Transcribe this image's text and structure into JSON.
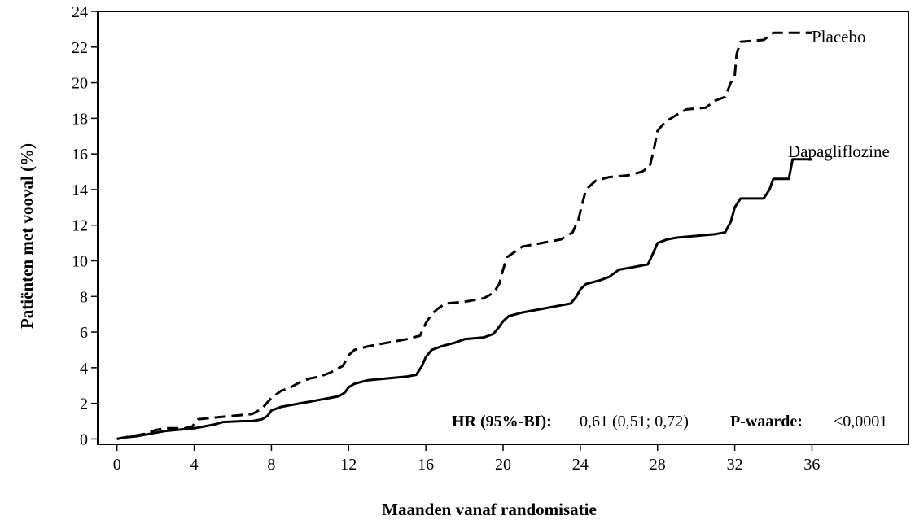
{
  "chart_data": {
    "type": "line",
    "xlabel": "Maanden vanaf randomisatie",
    "ylabel": "Patiënten met vooval (%)",
    "xlim": [
      -1,
      41
    ],
    "ylim": [
      -0.3,
      24
    ],
    "x_ticks": [
      0,
      4,
      8,
      12,
      16,
      20,
      24,
      28,
      32,
      36
    ],
    "y_ticks": [
      0,
      2,
      4,
      6,
      8,
      10,
      12,
      14,
      16,
      18,
      20,
      22,
      24
    ],
    "series": [
      {
        "name": "Placebo",
        "style": "dashed",
        "color": "#000000",
        "points": [
          [
            0,
            0
          ],
          [
            0.5,
            0.1
          ],
          [
            1,
            0.2
          ],
          [
            1.5,
            0.3
          ],
          [
            2,
            0.5
          ],
          [
            2.5,
            0.6
          ],
          [
            3,
            0.6
          ],
          [
            3.5,
            0.6
          ],
          [
            3.9,
            0.7
          ],
          [
            4.2,
            1.1
          ],
          [
            5,
            1.2
          ],
          [
            6,
            1.3
          ],
          [
            7,
            1.4
          ],
          [
            7.5,
            1.7
          ],
          [
            8,
            2.3
          ],
          [
            8.5,
            2.7
          ],
          [
            9,
            2.9
          ],
          [
            9.5,
            3.2
          ],
          [
            10,
            3.4
          ],
          [
            10.5,
            3.5
          ],
          [
            11,
            3.7
          ],
          [
            11.7,
            4.1
          ],
          [
            12,
            4.7
          ],
          [
            12.3,
            5.0
          ],
          [
            13,
            5.2
          ],
          [
            14,
            5.4
          ],
          [
            15,
            5.6
          ],
          [
            15.7,
            5.8
          ],
          [
            16,
            6.5
          ],
          [
            16.3,
            7.0
          ],
          [
            16.6,
            7.3
          ],
          [
            17,
            7.6
          ],
          [
            18,
            7.7
          ],
          [
            19,
            7.9
          ],
          [
            19.5,
            8.2
          ],
          [
            19.8,
            8.7
          ],
          [
            20,
            9.5
          ],
          [
            20.2,
            10.2
          ],
          [
            20.6,
            10.5
          ],
          [
            21,
            10.8
          ],
          [
            22,
            11.0
          ],
          [
            23,
            11.2
          ],
          [
            23.6,
            11.6
          ],
          [
            23.9,
            12.3
          ],
          [
            24.1,
            13.2
          ],
          [
            24.3,
            14.0
          ],
          [
            24.8,
            14.5
          ],
          [
            25.5,
            14.7
          ],
          [
            26.5,
            14.8
          ],
          [
            27.2,
            15.0
          ],
          [
            27.6,
            15.3
          ],
          [
            27.8,
            16.2
          ],
          [
            28,
            17.3
          ],
          [
            28.4,
            17.8
          ],
          [
            29,
            18.2
          ],
          [
            29.5,
            18.5
          ],
          [
            30.5,
            18.6
          ],
          [
            31,
            19.0
          ],
          [
            31.5,
            19.2
          ],
          [
            31.8,
            20.0
          ],
          [
            32.0,
            20.4
          ],
          [
            32.1,
            21.6
          ],
          [
            32.3,
            22.3
          ],
          [
            33.5,
            22.4
          ],
          [
            34,
            22.8
          ],
          [
            36,
            22.8
          ]
        ]
      },
      {
        "name": "Dapagliflozine",
        "style": "solid",
        "color": "#000000",
        "points": [
          [
            0,
            0
          ],
          [
            0.5,
            0.1
          ],
          [
            1,
            0.15
          ],
          [
            1.5,
            0.25
          ],
          [
            2,
            0.35
          ],
          [
            2.5,
            0.45
          ],
          [
            3,
            0.5
          ],
          [
            4,
            0.6
          ],
          [
            4.5,
            0.7
          ],
          [
            5,
            0.8
          ],
          [
            5.5,
            0.95
          ],
          [
            6.5,
            1.0
          ],
          [
            7,
            1.0
          ],
          [
            7.5,
            1.1
          ],
          [
            7.8,
            1.3
          ],
          [
            8,
            1.6
          ],
          [
            8.5,
            1.8
          ],
          [
            9,
            1.9
          ],
          [
            9.5,
            2.0
          ],
          [
            10,
            2.1
          ],
          [
            10.5,
            2.2
          ],
          [
            11,
            2.3
          ],
          [
            11.5,
            2.4
          ],
          [
            11.8,
            2.6
          ],
          [
            12,
            2.9
          ],
          [
            12.3,
            3.1
          ],
          [
            13,
            3.3
          ],
          [
            14,
            3.4
          ],
          [
            15,
            3.5
          ],
          [
            15.5,
            3.6
          ],
          [
            15.8,
            4.1
          ],
          [
            16,
            4.6
          ],
          [
            16.3,
            5.0
          ],
          [
            16.8,
            5.2
          ],
          [
            17.5,
            5.4
          ],
          [
            18,
            5.6
          ],
          [
            19,
            5.7
          ],
          [
            19.5,
            5.9
          ],
          [
            19.8,
            6.3
          ],
          [
            20,
            6.6
          ],
          [
            20.3,
            6.9
          ],
          [
            21,
            7.1
          ],
          [
            22,
            7.3
          ],
          [
            23,
            7.5
          ],
          [
            23.5,
            7.6
          ],
          [
            23.8,
            8.0
          ],
          [
            24,
            8.4
          ],
          [
            24.3,
            8.7
          ],
          [
            25,
            8.9
          ],
          [
            25.5,
            9.1
          ],
          [
            26,
            9.5
          ],
          [
            26.5,
            9.6
          ],
          [
            27,
            9.7
          ],
          [
            27.5,
            9.8
          ],
          [
            27.8,
            10.5
          ],
          [
            28,
            11.0
          ],
          [
            28.5,
            11.2
          ],
          [
            29,
            11.3
          ],
          [
            30,
            11.4
          ],
          [
            31,
            11.5
          ],
          [
            31.5,
            11.6
          ],
          [
            31.8,
            12.2
          ],
          [
            32,
            13.0
          ],
          [
            32.3,
            13.5
          ],
          [
            33.5,
            13.5
          ],
          [
            33.8,
            14.0
          ],
          [
            34,
            14.6
          ],
          [
            34.8,
            14.6
          ],
          [
            35,
            15.7
          ],
          [
            36,
            15.7
          ]
        ]
      }
    ],
    "annotation": {
      "hr_label": "HR (95%-BI):",
      "hr_value": "0,61 (0,51; 0,72)",
      "p_label": "P-waarde:",
      "p_value": "<0,0001"
    },
    "grid": false
  }
}
